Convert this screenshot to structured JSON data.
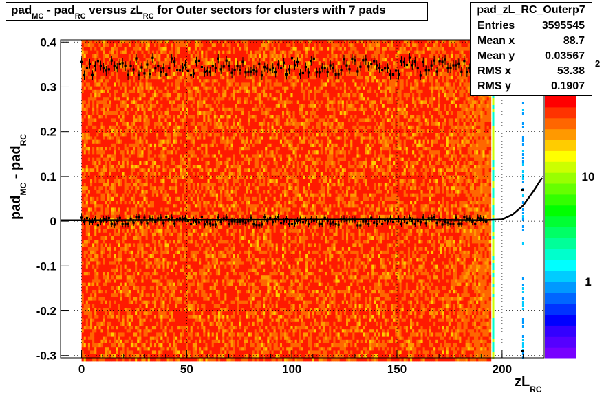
{
  "title": {
    "p1": "pad",
    "s1": "MC",
    "p2": " - pad",
    "s2": "RC",
    "p3": " versus zL",
    "s3": "RC",
    "p4": " for Outer sectors for clusters with 7 pads"
  },
  "axis": {
    "ylabel_main": "pad",
    "ylabel_s1": "MC",
    "ylabel_mid": " - pad",
    "ylabel_s2": "RC",
    "xlabel_main": "zL",
    "xlabel_sub": "RC"
  },
  "stats": {
    "name": "pad_zL_RC_Outerp7",
    "rows": [
      {
        "k": "Entries",
        "v": "3595545"
      },
      {
        "k": "Mean x",
        "v": "88.7"
      },
      {
        "k": "Mean y",
        "v": "0.03567"
      },
      {
        "k": "RMS x",
        "v": "53.38"
      },
      {
        "k": "RMS y",
        "v": "0.1907"
      }
    ]
  },
  "palette": {
    "red": "#ff1a00",
    "orange": "#ff6600",
    "lightorange": "#ff9900",
    "yellow": "#ffcc00"
  },
  "chart_data": {
    "type": "heatmap",
    "xlim": [
      -10,
      220
    ],
    "ylim": [
      -0.305,
      0.405
    ],
    "xticks": [
      "0",
      "50",
      "100",
      "150",
      "200"
    ],
    "xtick_vals": [
      0,
      50,
      100,
      150,
      200
    ],
    "yticks": [
      "-0.3",
      "-0.2",
      "-0.1",
      "0",
      "0.1",
      "0.2",
      "0.3",
      "0.4"
    ],
    "ytick_vals": [
      -0.3,
      -0.2,
      -0.1,
      0,
      0.1,
      0.2,
      0.3,
      0.4
    ],
    "z_scale": "log",
    "z_ticks": [
      "1",
      "10"
    ],
    "z_tick_vals": [
      1,
      10
    ],
    "z_extra_label": "2",
    "grid": true,
    "heatmap_x_range": [
      0,
      194
    ],
    "profile_high_y": 0.345,
    "profile_low_y": 0.0,
    "fit_curve": [
      [
        -10,
        0.002
      ],
      [
        150,
        0.004
      ],
      [
        190,
        0.002
      ],
      [
        200,
        0.004
      ],
      [
        205,
        0.015
      ],
      [
        210,
        0.035
      ],
      [
        215,
        0.068
      ],
      [
        219,
        0.097
      ]
    ]
  }
}
